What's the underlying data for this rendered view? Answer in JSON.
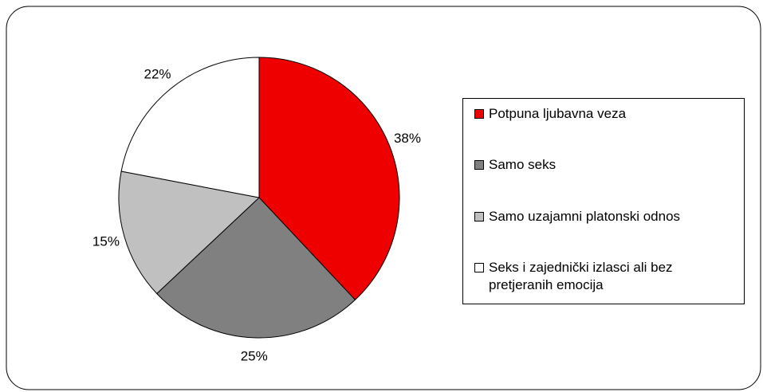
{
  "chart_data": {
    "type": "pie",
    "categories": [
      "Potpuna ljubavna veza",
      "Samo seks",
      "Samo uzajamni platonski odnos",
      "Seks i zajednički izlasci ali bez pretjeranih emocija"
    ],
    "values": [
      38,
      25,
      15,
      22
    ],
    "value_labels": [
      "38%",
      "25%",
      "15%",
      "22%"
    ],
    "colors": [
      "#ee0000",
      "#808080",
      "#c0c0c0",
      "#ffffff"
    ],
    "legend": "right"
  }
}
